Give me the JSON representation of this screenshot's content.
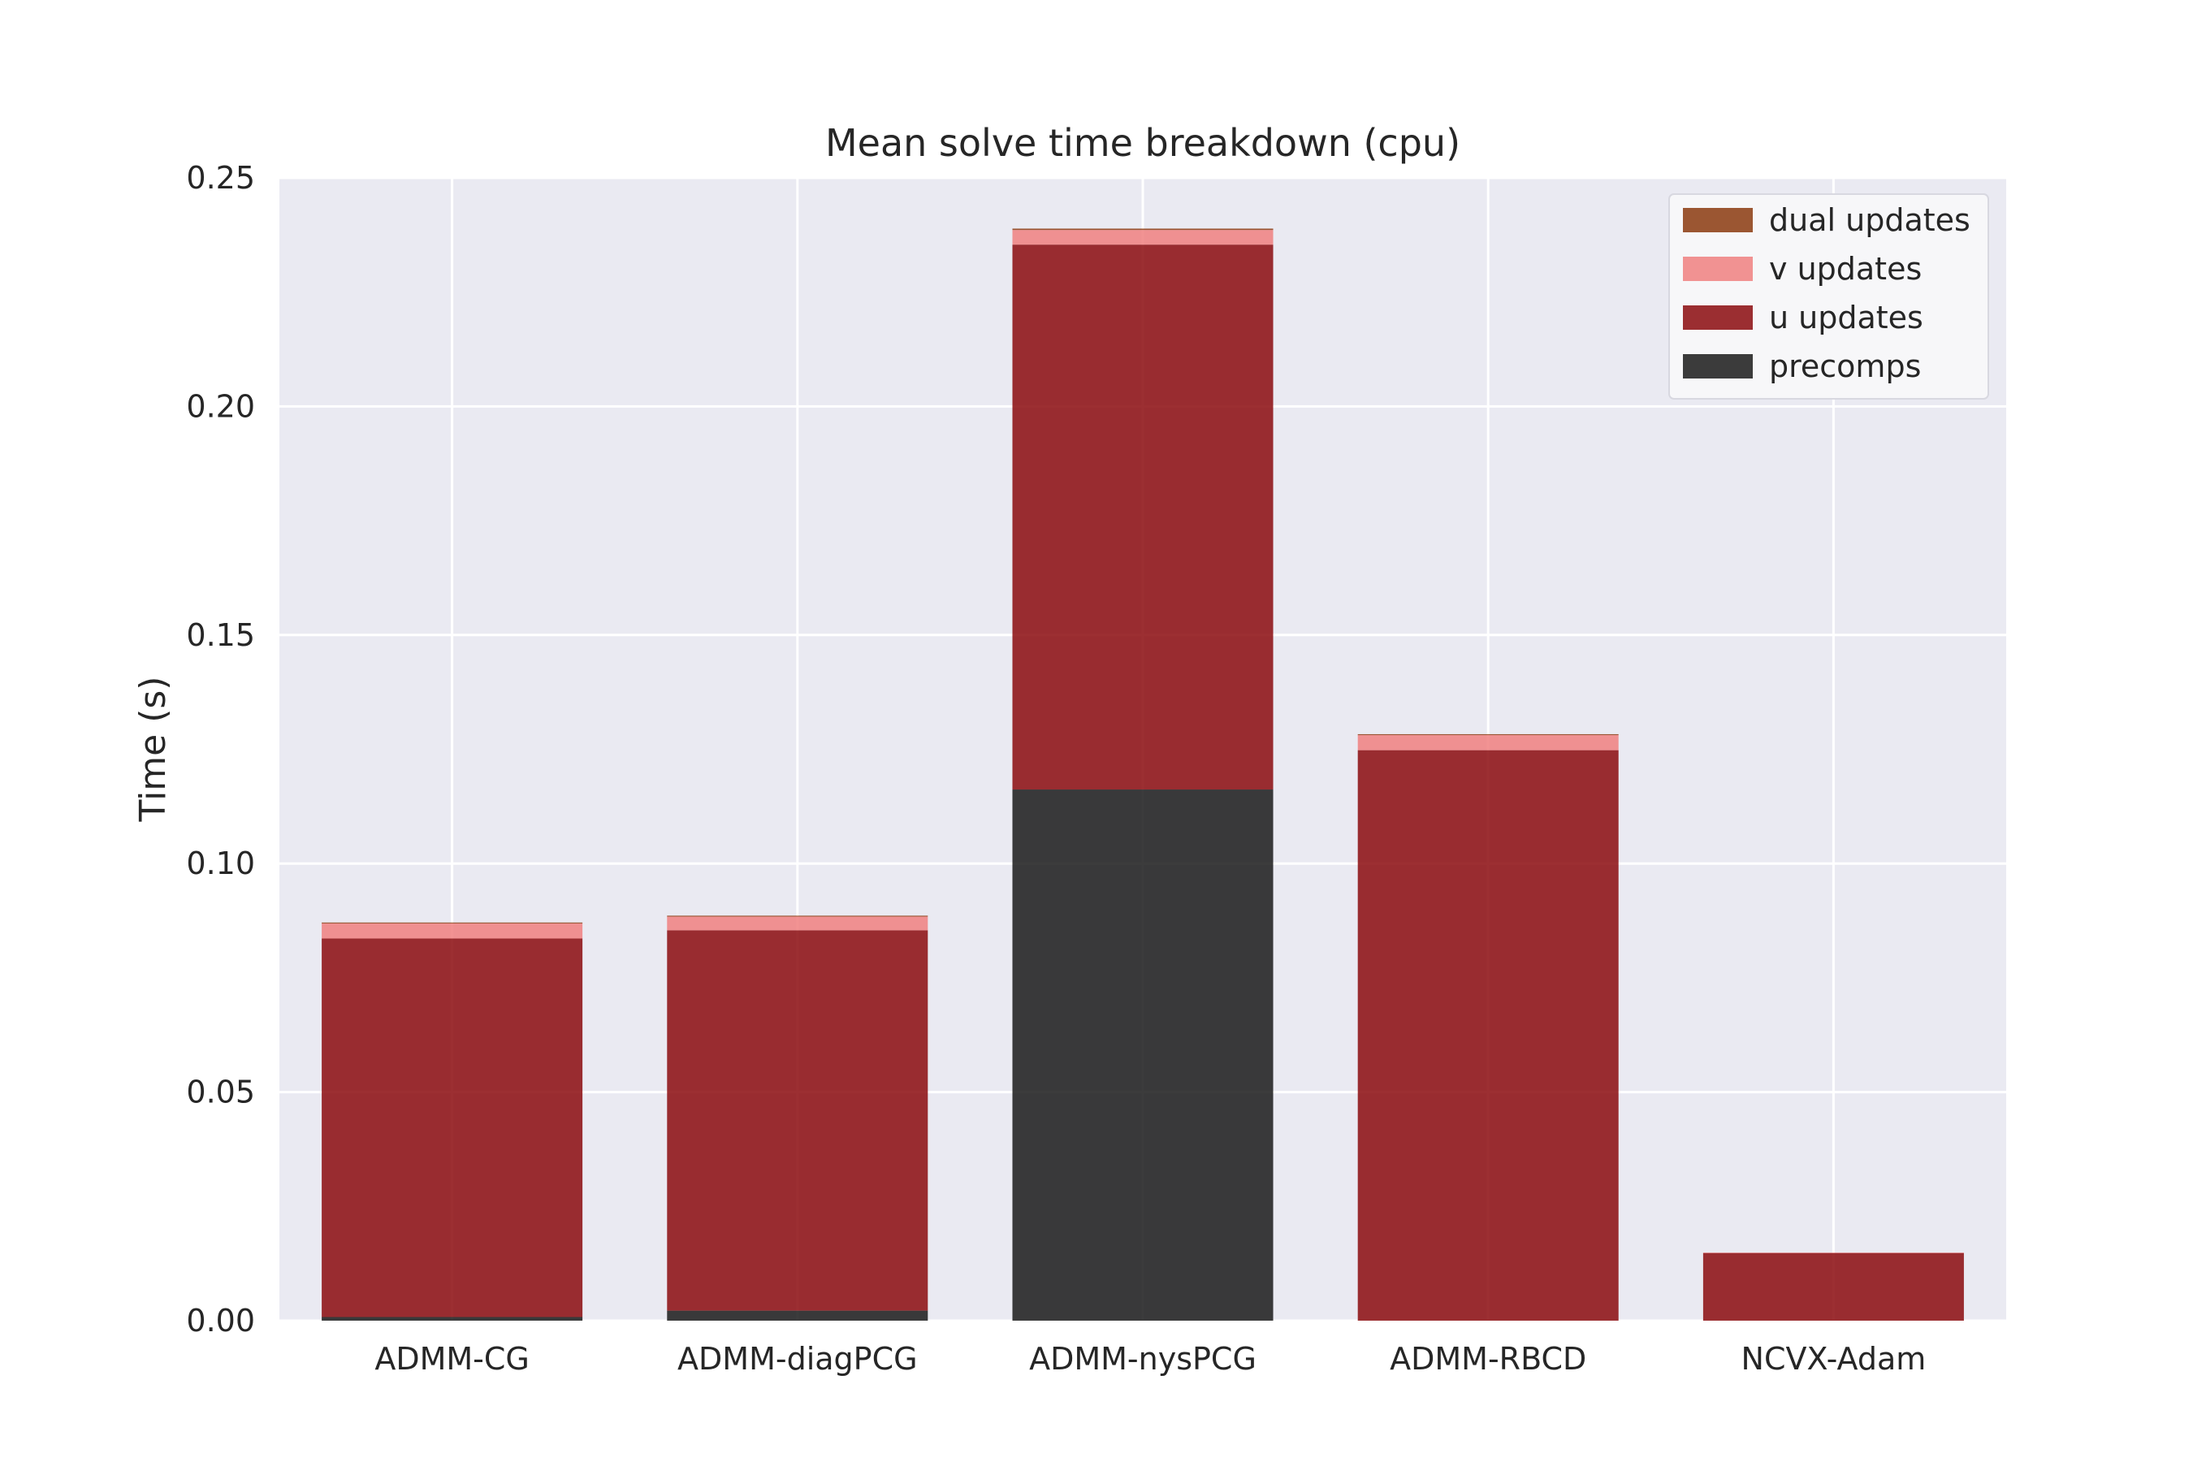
{
  "chart_data": {
    "type": "bar",
    "stacked": true,
    "title": "Mean solve time breakdown (cpu)",
    "xlabel": "",
    "ylabel": "Time (s)",
    "ylim": [
      0,
      0.25
    ],
    "yticks": [
      "0.00",
      "0.05",
      "0.10",
      "0.15",
      "0.20",
      "0.25"
    ],
    "categories": [
      "ADMM-CG",
      "ADMM-diagPCG",
      "ADMM-nysPCG",
      "ADMM-RBCD",
      "NCVX-Adam"
    ],
    "grid": true,
    "legend_position": "top-right",
    "series": [
      {
        "name": "precomps",
        "color": "#1a1a1a",
        "values": [
          0.0008,
          0.0022,
          0.1162,
          0.0,
          0.0
        ]
      },
      {
        "name": "u updates",
        "color": "#8b0a0e",
        "values": [
          0.0828,
          0.0832,
          0.1192,
          0.1248,
          0.0148
        ]
      },
      {
        "name": "v updates",
        "color": "#f08080",
        "values": [
          0.0033,
          0.003,
          0.0032,
          0.0033,
          0.0001
        ]
      },
      {
        "name": "dual updates",
        "color": "#8b3a0f",
        "values": [
          0.0002,
          0.0002,
          0.0003,
          0.0002,
          0.0
        ]
      }
    ],
    "legend_order": [
      "dual updates",
      "v updates",
      "u updates",
      "precomps"
    ]
  }
}
